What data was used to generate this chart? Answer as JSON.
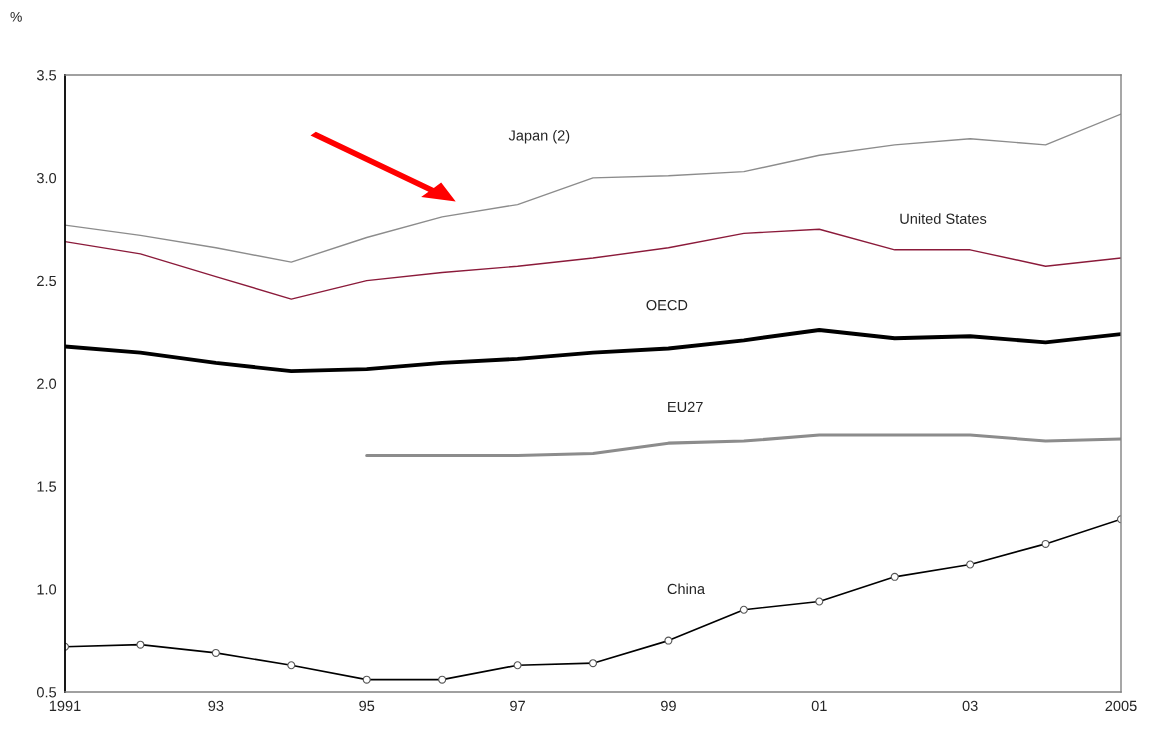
{
  "chart_data": {
    "type": "line",
    "ylabel": "%",
    "x": [
      1991,
      1992,
      1993,
      1994,
      1995,
      1996,
      1997,
      1998,
      1999,
      2000,
      2001,
      2002,
      2003,
      2004,
      2005
    ],
    "xlim": [
      1991,
      2005
    ],
    "xticks": [
      1991,
      {
        "value": 1993,
        "label": "93"
      },
      {
        "value": 1995,
        "label": "95"
      },
      {
        "value": 1997,
        "label": "97"
      },
      {
        "value": 1999,
        "label": "99"
      },
      {
        "value": 2001,
        "label": "01"
      },
      {
        "value": 2003,
        "label": "03"
      },
      2005
    ],
    "ylim": [
      0.5,
      3.5
    ],
    "yticks": [
      {
        "value": 0.5,
        "label": "0.5"
      },
      {
        "value": 1.0,
        "label": "1.0"
      },
      {
        "value": 1.5,
        "label": "1.5"
      },
      {
        "value": 2.0,
        "label": "2.0"
      },
      {
        "value": 2.5,
        "label": "2.5"
      },
      {
        "value": 3.0,
        "label": "3.0"
      },
      {
        "value": 3.5,
        "label": "3.5"
      }
    ],
    "grid": false,
    "legend": false,
    "series": [
      {
        "name": "Japan (2)",
        "color": "#8c8c8c",
        "values": [
          2.77,
          2.72,
          2.66,
          2.59,
          2.71,
          2.81,
          2.87,
          3.0,
          3.01,
          3.03,
          3.11,
          3.16,
          3.19,
          3.16,
          3.31
        ]
      },
      {
        "name": "United States",
        "color": "#8b1a3a",
        "values": [
          2.69,
          2.63,
          2.52,
          2.41,
          2.5,
          2.54,
          2.57,
          2.61,
          2.66,
          2.73,
          2.75,
          2.65,
          2.65,
          2.57,
          2.61
        ]
      },
      {
        "name": "OECD",
        "color": "#000000",
        "values": [
          2.18,
          2.15,
          2.1,
          2.06,
          2.07,
          2.1,
          2.12,
          2.15,
          2.17,
          2.21,
          2.26,
          2.22,
          2.23,
          2.2,
          2.24
        ]
      },
      {
        "name": "EU27",
        "color": "#8c8c8c",
        "values": [
          null,
          null,
          null,
          null,
          1.65,
          1.65,
          1.65,
          1.66,
          1.71,
          1.72,
          1.75,
          1.75,
          1.75,
          1.72,
          1.73
        ]
      },
      {
        "name": "China",
        "color": "#000000",
        "marker": "circle",
        "values": [
          0.72,
          0.73,
          0.69,
          0.63,
          0.56,
          0.56,
          0.63,
          0.64,
          0.75,
          0.9,
          0.94,
          1.06,
          1.12,
          1.22,
          1.34
        ]
      }
    ]
  }
}
